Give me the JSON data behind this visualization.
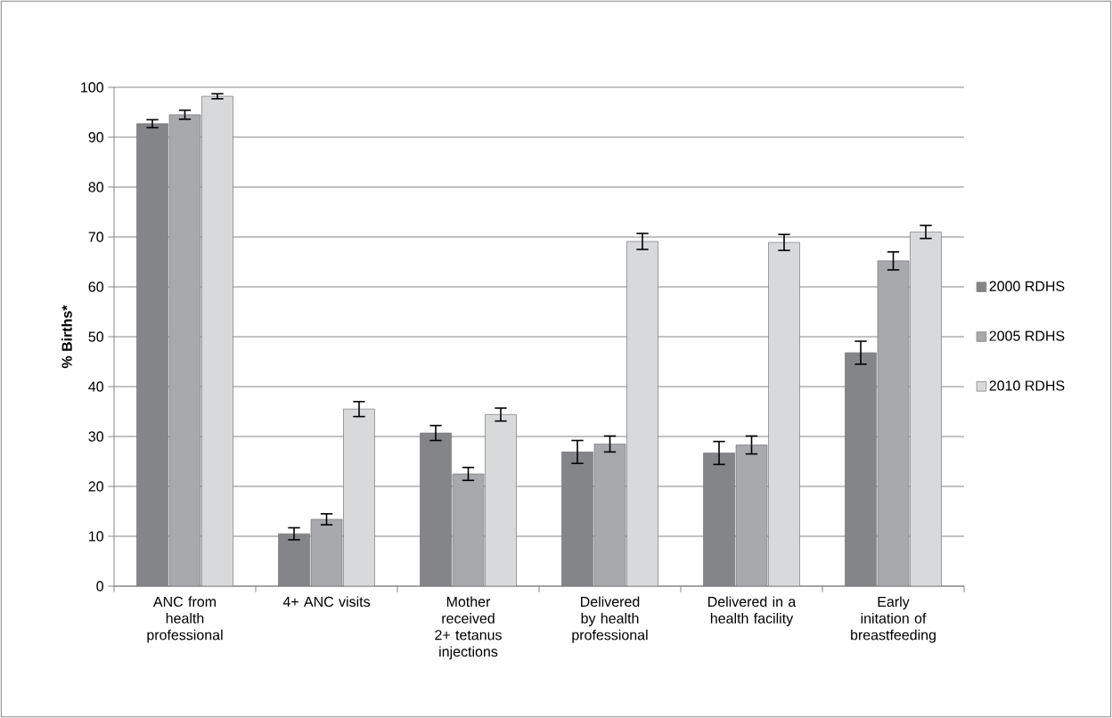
{
  "chart_data": {
    "type": "bar",
    "ylabel": "% Births*",
    "categories": [
      "ANC from health professional",
      "4+ ANC visits",
      "Mother received 2+ tetanus injections",
      "Delivered by health professional",
      "Delivered in a health facility",
      "Early initation of breastfeeding"
    ],
    "series": [
      {
        "name": "2000 RDHS",
        "color": "#848589",
        "values": [
          92.7,
          10.5,
          30.7,
          26.9,
          26.7,
          46.8
        ],
        "errors": [
          0.8,
          1.2,
          1.5,
          2.3,
          2.3,
          2.3
        ]
      },
      {
        "name": "2005 RDHS",
        "color": "#a8a9ad",
        "values": [
          94.5,
          13.4,
          22.5,
          28.5,
          28.3,
          65.2
        ],
        "errors": [
          0.9,
          1.1,
          1.3,
          1.6,
          1.8,
          1.8
        ]
      },
      {
        "name": "2010 RDHS",
        "color": "#d8d9db",
        "values": [
          98.2,
          35.5,
          34.4,
          69.1,
          68.9,
          71.0
        ],
        "errors": [
          0.5,
          1.5,
          1.3,
          1.6,
          1.6,
          1.3
        ]
      }
    ],
    "ylim": [
      0,
      100
    ],
    "yticks": [
      0,
      10,
      20,
      30,
      40,
      50,
      60,
      70,
      80,
      90,
      100
    ],
    "grid": "y",
    "legend": "right"
  }
}
